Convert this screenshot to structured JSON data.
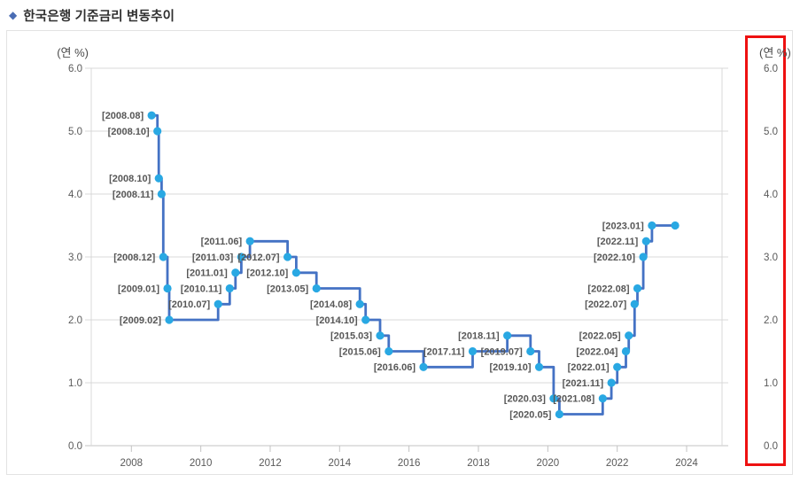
{
  "title": {
    "bullet": "◆",
    "text": "한국은행 기준금리 변동추이"
  },
  "chart_data": {
    "type": "line",
    "line_style": "step-after",
    "title": "한국은행 기준금리 변동추이",
    "unit_label_left": "(연 %)",
    "unit_label_right": "(연 %)",
    "ylim": [
      0.0,
      6.0
    ],
    "y_ticks": [
      6.0,
      5.0,
      4.0,
      3.0,
      2.0,
      1.0,
      0.0
    ],
    "x_ticks": [
      2008,
      2010,
      2012,
      2014,
      2016,
      2018,
      2020,
      2022,
      2024
    ],
    "grid": true,
    "legend": "none",
    "colors": {
      "line": "#4472c4",
      "point": "#29a8e3",
      "grid": "#d9d9d9",
      "axis": "#c3c3c3",
      "tick_text": "#595959",
      "point_label": "#575757",
      "highlight_box": "#ee1111",
      "title_bullet": "#4a6db4",
      "title_text": "#2f2f2f",
      "panel_border": "#e3e3e3"
    },
    "points": [
      {
        "label": "[2008.08]",
        "year_frac": 2008.583,
        "rate": 5.25
      },
      {
        "label": "[2008.10]",
        "year_frac": 2008.75,
        "rate": 5.0
      },
      {
        "label": "[2008.10]",
        "year_frac": 2008.79,
        "rate": 4.25
      },
      {
        "label": "[2008.11]",
        "year_frac": 2008.87,
        "rate": 4.0
      },
      {
        "label": "[2008.12]",
        "year_frac": 2008.92,
        "rate": 3.0
      },
      {
        "label": "[2009.01]",
        "year_frac": 2009.04,
        "rate": 2.5
      },
      {
        "label": "[2009.02]",
        "year_frac": 2009.09,
        "rate": 2.0
      },
      {
        "label": "[2010.07]",
        "year_frac": 2010.5,
        "rate": 2.25
      },
      {
        "label": "[2010.11]",
        "year_frac": 2010.833,
        "rate": 2.5
      },
      {
        "label": "[2011.01]",
        "year_frac": 2011.0,
        "rate": 2.75
      },
      {
        "label": "[2011.03]",
        "year_frac": 2011.167,
        "rate": 3.0
      },
      {
        "label": "[2011.06]",
        "year_frac": 2011.417,
        "rate": 3.25
      },
      {
        "label": "[2012.07]",
        "year_frac": 2012.5,
        "rate": 3.0
      },
      {
        "label": "[2012.10]",
        "year_frac": 2012.75,
        "rate": 2.75
      },
      {
        "label": "[2013.05]",
        "year_frac": 2013.333,
        "rate": 2.5
      },
      {
        "label": "[2014.08]",
        "year_frac": 2014.583,
        "rate": 2.25
      },
      {
        "label": "[2014.10]",
        "year_frac": 2014.75,
        "rate": 2.0
      },
      {
        "label": "[2015.03]",
        "year_frac": 2015.167,
        "rate": 1.75
      },
      {
        "label": "[2015.06]",
        "year_frac": 2015.417,
        "rate": 1.5
      },
      {
        "label": "[2016.06]",
        "year_frac": 2016.417,
        "rate": 1.25
      },
      {
        "label": "[2017.11]",
        "year_frac": 2017.833,
        "rate": 1.5
      },
      {
        "label": "[2018.11]",
        "year_frac": 2018.833,
        "rate": 1.75
      },
      {
        "label": "[2019.07]",
        "year_frac": 2019.5,
        "rate": 1.5
      },
      {
        "label": "[2019.10]",
        "year_frac": 2019.75,
        "rate": 1.25
      },
      {
        "label": "[2020.03]",
        "year_frac": 2020.167,
        "rate": 0.75
      },
      {
        "label": "[2020.05]",
        "year_frac": 2020.333,
        "rate": 0.5
      },
      {
        "label": "[2021.08]",
        "year_frac": 2021.583,
        "rate": 0.75
      },
      {
        "label": "[2021.11]",
        "year_frac": 2021.833,
        "rate": 1.0
      },
      {
        "label": "[2022.01]",
        "year_frac": 2022.0,
        "rate": 1.25
      },
      {
        "label": "[2022.04]",
        "year_frac": 2022.25,
        "rate": 1.5
      },
      {
        "label": "[2022.05]",
        "year_frac": 2022.333,
        "rate": 1.75
      },
      {
        "label": "[2022.07]",
        "year_frac": 2022.5,
        "rate": 2.25
      },
      {
        "label": "[2022.08]",
        "year_frac": 2022.583,
        "rate": 2.5
      },
      {
        "label": "[2022.10]",
        "year_frac": 2022.75,
        "rate": 3.0
      },
      {
        "label": "[2022.11]",
        "year_frac": 2022.833,
        "rate": 3.25
      },
      {
        "label": "[2023.01]",
        "year_frac": 2023.0,
        "rate": 3.5
      },
      {
        "label": "",
        "year_frac": 2023.67,
        "rate": 3.5
      }
    ]
  }
}
